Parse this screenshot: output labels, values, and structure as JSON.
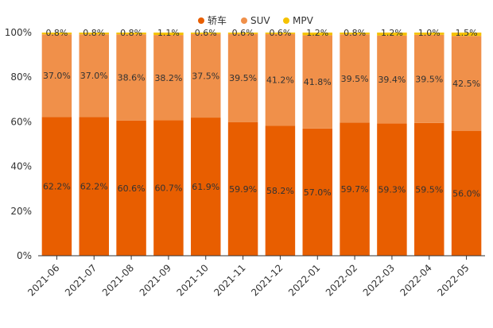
{
  "chart_data": {
    "type": "bar",
    "stacked": true,
    "percent": true,
    "categories": [
      "2021-06",
      "2021-07",
      "2021-08",
      "2021-09",
      "2021-10",
      "2021-11",
      "2021-12",
      "2022-01",
      "2022-02",
      "2022-03",
      "2022-04",
      "2022-05"
    ],
    "series": [
      {
        "name": "轿车",
        "color": "#e85e00",
        "values": [
          62.2,
          62.2,
          60.6,
          60.7,
          61.9,
          59.9,
          58.2,
          57.0,
          59.7,
          59.3,
          59.5,
          56.0
        ],
        "labels": [
          "62.2%",
          "62.2%",
          "60.6%",
          "60.7%",
          "61.9%",
          "59.9%",
          "58.2%",
          "57.0%",
          "59.7%",
          "59.3%",
          "59.5%",
          "56.0%"
        ]
      },
      {
        "name": "SUV",
        "color": "#f0904a",
        "values": [
          37.0,
          37.0,
          38.6,
          38.2,
          37.5,
          39.5,
          41.2,
          41.8,
          39.5,
          39.4,
          39.5,
          42.5
        ],
        "labels": [
          "37.0%",
          "37.0%",
          "38.6%",
          "38.2%",
          "37.5%",
          "39.5%",
          "41.2%",
          "41.8%",
          "39.5%",
          "39.4%",
          "39.5%",
          "42.5%"
        ]
      },
      {
        "name": "MPV",
        "color": "#f5c200",
        "values": [
          0.8,
          0.8,
          0.8,
          1.1,
          0.6,
          0.6,
          0.6,
          1.2,
          0.8,
          1.2,
          1.0,
          1.5
        ],
        "labels": [
          "0.8%",
          "0.8%",
          "0.8%",
          "1.1%",
          "0.6%",
          "0.6%",
          "0.6%",
          "1.2%",
          "0.8%",
          "1.2%",
          "1.0%",
          "1.5%"
        ]
      }
    ],
    "ylim": [
      0,
      100
    ],
    "yticks": [
      0,
      20,
      40,
      60,
      80,
      100
    ],
    "ytick_labels": [
      "0%",
      "20%",
      "40%",
      "60%",
      "80%",
      "100%"
    ],
    "legend": "top-center",
    "grid": false
  }
}
